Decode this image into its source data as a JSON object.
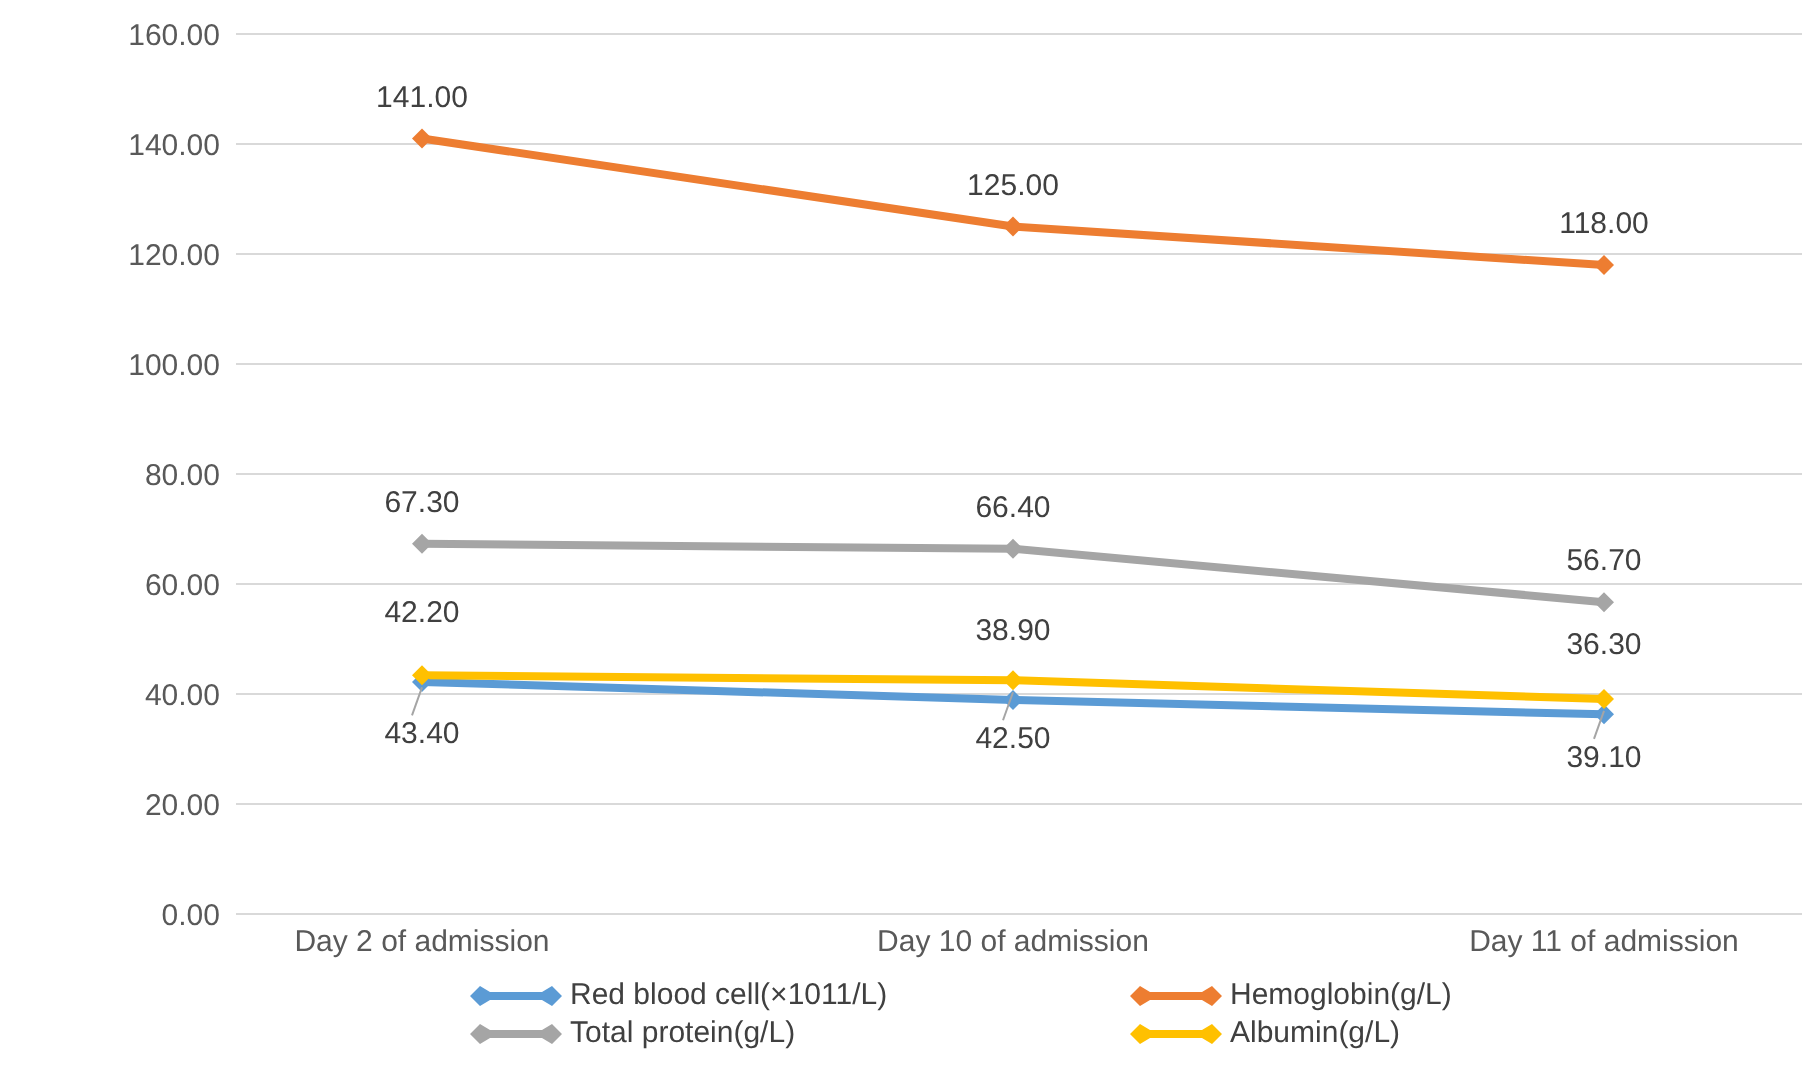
{
  "chart_data": {
    "type": "line",
    "categories": [
      "Day 2 of admission",
      "Day 10 of admission",
      "Day 11 of admission"
    ],
    "series": [
      {
        "name": "Red blood cell(×1011/L)",
        "color": "#5b9bd5",
        "values": [
          42.2,
          38.9,
          36.3
        ],
        "value_labels": [
          "42.20",
          "38.90",
          "36.30"
        ]
      },
      {
        "name": "Hemoglobin(g/L)",
        "color": "#ed7d31",
        "values": [
          141,
          125,
          118
        ],
        "value_labels": [
          "141.00",
          "125.00",
          "118.00"
        ]
      },
      {
        "name": "Total protein(g/L)",
        "color": "#a5a5a5",
        "values": [
          67.3,
          66.4,
          56.7
        ],
        "value_labels": [
          "67.30",
          "66.40",
          "56.70"
        ]
      },
      {
        "name": "Albumin(g/L)",
        "color": "#ffc000",
        "values": [
          43.4,
          42.5,
          39.1
        ],
        "value_labels": [
          "43.40",
          "42.50",
          "39.10"
        ]
      }
    ],
    "ylim": [
      0,
      160
    ],
    "yticks": [
      {
        "value": 0,
        "label": "0.00"
      },
      {
        "value": 20,
        "label": "20.00"
      },
      {
        "value": 40,
        "label": "40.00"
      },
      {
        "value": 60,
        "label": "60.00"
      },
      {
        "value": 80,
        "label": "80.00"
      },
      {
        "value": 100,
        "label": "100.00"
      },
      {
        "value": 120,
        "label": "120.00"
      },
      {
        "value": 140,
        "label": "140.00"
      },
      {
        "value": 160,
        "label": "160.00"
      }
    ],
    "grid": "y",
    "legend": "bottom",
    "marker": "diamond",
    "line_style": "solid"
  }
}
